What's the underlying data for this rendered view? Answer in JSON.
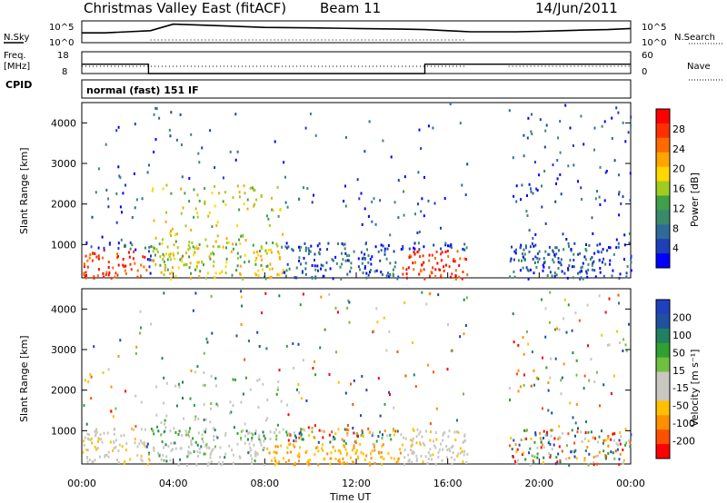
{
  "header": {
    "station": "Christmas Valley East (fitACF)",
    "beam": "Beam 11",
    "date": "14/Jun/2011",
    "cpid_value": "normal (fast) 151 IF"
  },
  "chart_data": [
    {
      "type": "line",
      "panel": "noise",
      "left_label": "N.Sky",
      "right_label": "N.Search",
      "left_ticks": [
        "10^5",
        "10^0"
      ],
      "right_ticks": [
        "10^5",
        "10^0"
      ],
      "series": [
        {
          "name": "N.Sky",
          "x": [
            "00:00",
            "01:00",
            "02:00",
            "03:00",
            "04:00",
            "06:00",
            "08:00",
            "10:00",
            "12:00",
            "14:00",
            "15:00",
            "16:00",
            "17:00",
            "18:30",
            "19:00",
            "20:00",
            "21:00",
            "22:00",
            "23:00",
            "24:00"
          ],
          "y_rel": [
            0.55,
            0.55,
            0.5,
            0.45,
            0.15,
            0.22,
            0.3,
            0.32,
            0.35,
            0.38,
            0.4,
            0.45,
            0.5,
            0.5,
            0.5,
            0.48,
            0.45,
            0.42,
            0.4,
            0.35
          ]
        }
      ]
    },
    {
      "type": "line",
      "panel": "frequency",
      "left_label": "Freq. [MHz]",
      "right_label": "Nave",
      "left_ticks": [
        "18",
        "8"
      ],
      "right_ticks": [
        "60",
        "0"
      ],
      "series": [
        {
          "name": "Freq.",
          "x": [
            "00:00",
            "02:55",
            "02:55",
            "15:00",
            "15:00",
            "16:50",
            "18:40",
            "24:00"
          ],
          "y": [
            12.3,
            12.3,
            8,
            8,
            12.3,
            12.3,
            12.3,
            12.3
          ]
        },
        {
          "name": "Nave",
          "x": [
            "00:00",
            "02:55",
            "02:55",
            "15:00",
            "15:00",
            "16:50",
            "18:40",
            "24:00"
          ],
          "y": [
            8,
            8,
            8,
            8,
            8,
            8,
            8,
            8
          ]
        }
      ]
    },
    {
      "type": "heatmap",
      "panel": "power",
      "ylabel": "Slant Range [km]",
      "y_ticks": [
        "1000",
        "2000",
        "3000",
        "4000"
      ],
      "ylim": [
        180,
        4500
      ],
      "colorbar": {
        "label": "Power [dB]",
        "ticks": [
          "4",
          "8",
          "12",
          "16",
          "20",
          "24",
          "28"
        ],
        "colors": [
          "#0000ff",
          "#1e3fb8",
          "#2e6b9a",
          "#3a8a6a",
          "#3f9f4a",
          "#a0cc20",
          "#ffd700",
          "#ffa500",
          "#ff6a00",
          "#ff3000",
          "#ff0000"
        ]
      },
      "data_gap": [
        "16:50",
        "18:40"
      ]
    },
    {
      "type": "heatmap",
      "panel": "velocity",
      "ylabel": "Slant Range [km]",
      "y_ticks": [
        "1000",
        "2000",
        "3000",
        "4000"
      ],
      "ylim": [
        180,
        4500
      ],
      "colorbar": {
        "label": "Velocity [m s⁻¹]",
        "ticks": [
          "200",
          "100",
          "50",
          "15",
          "-15",
          "-50",
          "-100",
          "-200"
        ],
        "colors": [
          "#2040c0",
          "#2050a0",
          "#208060",
          "#30a030",
          "#70c040",
          "#c8c8c0",
          "#c8c8c0",
          "#ffc000",
          "#ff9000",
          "#ff5000",
          "#ff0000"
        ]
      },
      "data_gap": [
        "16:50",
        "18:40"
      ]
    }
  ],
  "xaxis": {
    "label": "Time UT",
    "ticks": [
      "00:00",
      "04:00",
      "08:00",
      "12:00",
      "16:00",
      "20:00",
      "00:00"
    ]
  }
}
